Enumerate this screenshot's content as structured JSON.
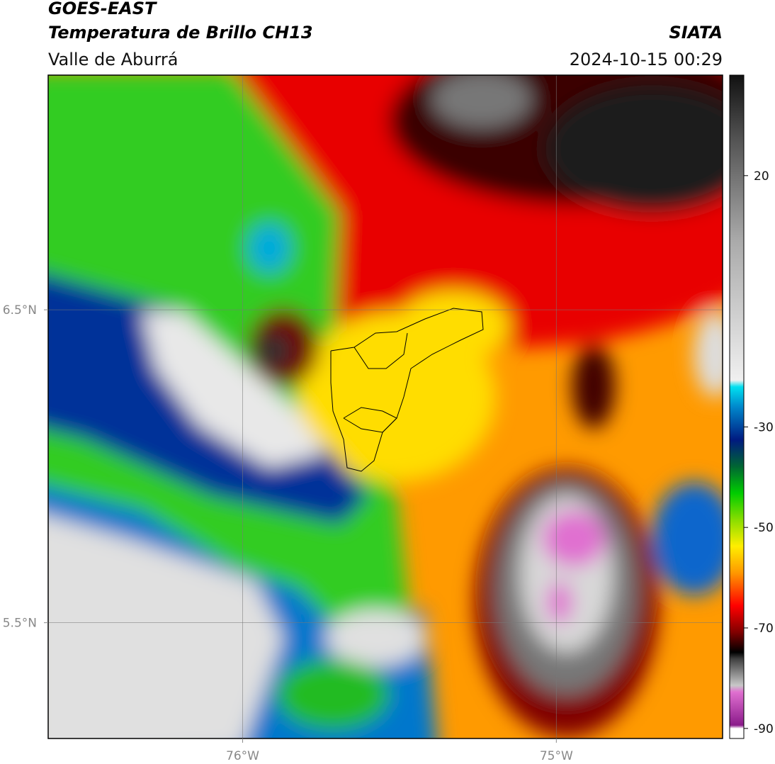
{
  "map": {
    "title": "GOES-EAST",
    "subtitle": "Temperatura de Brillo CH13",
    "region": "Valle de Aburrá",
    "source": "SIATA",
    "datetime": "2024-10-15 00:29",
    "xlim": [
      -76.62,
      -74.47
    ],
    "ylim": [
      5.13,
      7.25
    ],
    "xticks": [
      {
        "value": -76,
        "label": "76°W"
      },
      {
        "value": -75,
        "label": "75°W"
      }
    ],
    "yticks": [
      {
        "value": 6.5,
        "label": "6.5°N"
      },
      {
        "value": 5.5,
        "label": "5.5°N"
      }
    ],
    "grid": true,
    "colorbar": {
      "lim": [
        -92,
        40
      ],
      "ticks": [
        20,
        -30,
        -50,
        -70,
        -90
      ]
    }
  }
}
